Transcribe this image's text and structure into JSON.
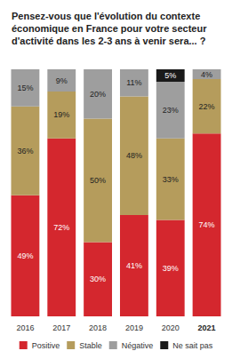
{
  "chart_data": {
    "type": "bar",
    "title": "Pensez-vous que l'évolution du contexte économique en France pour votre secteur d'activité dans les 2-3 ans à venir sera... ?",
    "categories": [
      "2016",
      "2017",
      "2018",
      "2019",
      "2020",
      "2021"
    ],
    "stacked": true,
    "data_labels": true,
    "tick_labels": "x",
    "legend": "bottom",
    "grid": false,
    "ylim": [
      0,
      100
    ],
    "series": [
      {
        "name": "Positive",
        "color": "#d4272e",
        "values": [
          49,
          72,
          30,
          41,
          39,
          74
        ],
        "value_labels": [
          "49%",
          "72%",
          "30%",
          "41%",
          "39%",
          "74%"
        ]
      },
      {
        "name": "Stable",
        "color": "#b59c5c",
        "values": [
          36,
          19,
          50,
          48,
          33,
          22
        ],
        "value_labels": [
          "36%",
          "19%",
          "50%",
          "48%",
          "33%",
          "22%"
        ]
      },
      {
        "name": "Négative",
        "color": "#9e9e9e",
        "values": [
          15,
          9,
          20,
          11,
          23,
          4
        ],
        "value_labels": [
          "15%",
          "9%",
          "20%",
          "11%",
          "23%",
          "4%"
        ]
      },
      {
        "name": "Ne sait pas",
        "color": "#1a1a1a",
        "values": [
          null,
          null,
          null,
          null,
          5,
          null
        ],
        "value_labels": [
          null,
          null,
          null,
          null,
          "5%",
          null
        ]
      }
    ]
  }
}
